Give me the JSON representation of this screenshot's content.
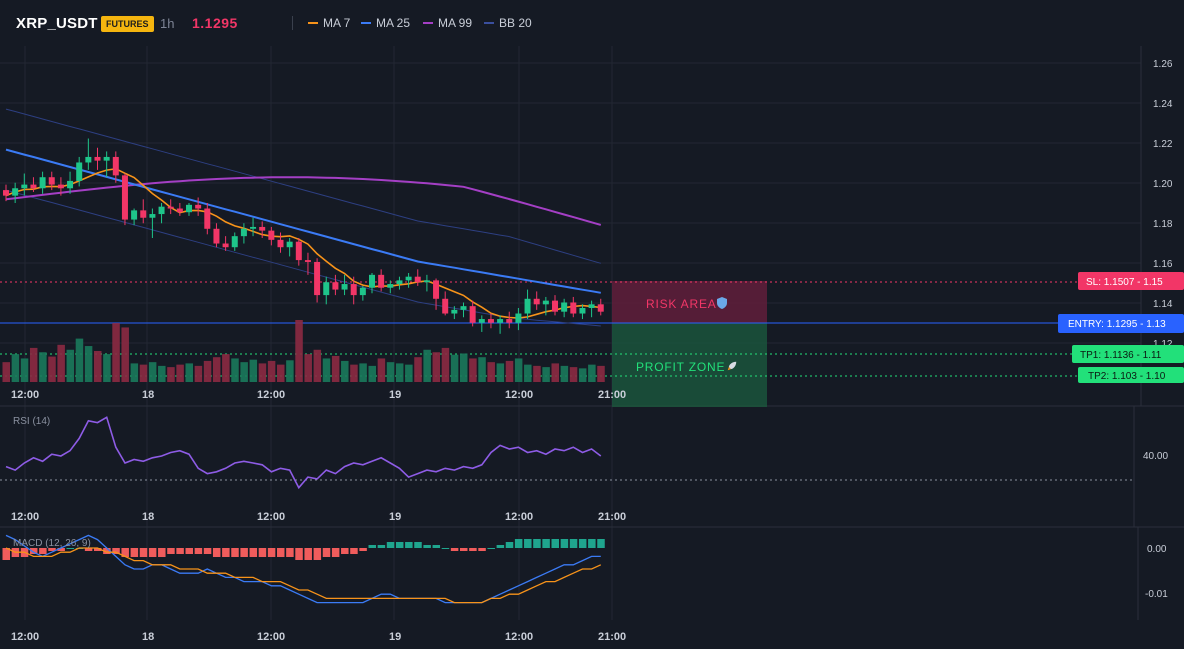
{
  "header": {
    "symbol": "XRP_USDT",
    "badge": "FUTURES",
    "timeframe": "1h",
    "price": "1.1295",
    "legend": [
      {
        "label": "MA 7",
        "color": "#f7931a"
      },
      {
        "label": "MA 25",
        "color": "#3b7bf5"
      },
      {
        "label": "MA 99",
        "color": "#a43fc5"
      },
      {
        "label": "BB 20",
        "color": "#3a4f9e"
      }
    ]
  },
  "colors": {
    "up": "#1ec58a",
    "down": "#f23667",
    "bg": "#151a24",
    "grid": "#222733"
  },
  "main_pane": {
    "y_axis_ticks": [
      "1.26",
      "1.24",
      "1.22",
      "1.20",
      "1.18",
      "1.16",
      "1.14",
      "1.12"
    ],
    "x_axis_ticks": [
      "12:00",
      "18",
      "12:00",
      "19",
      "12:00",
      "21:00"
    ],
    "risk_label": "RISK AREA",
    "profit_label": "PROFIT ZONE",
    "risk_icon": "shield-icon",
    "profit_icon": "rocket-icon",
    "levels": [
      {
        "id": "sl",
        "label": "SL: 1.1507 - 1.15",
        "color": "#f23667",
        "price": 1.1507
      },
      {
        "id": "entry",
        "label": "ENTRY: 1.1295 - 1.13",
        "color": "#2962ff",
        "price": 1.1295
      },
      {
        "id": "tp1",
        "label": "TP1: 1.1136 - 1.11",
        "color": "#22e07a",
        "price": 1.1136
      },
      {
        "id": "tp2",
        "label": "TP2: 1.103 - 1.10",
        "color": "#22e07a",
        "price": 1.103
      }
    ]
  },
  "rsi_pane": {
    "title": "RSI (14)",
    "level_label": "40.00",
    "x_axis_ticks": [
      "12:00",
      "18",
      "12:00",
      "19",
      "12:00",
      "21:00"
    ]
  },
  "macd_pane": {
    "title": "MACD (12, 26, 9)",
    "y_axis_ticks": [
      "0.00",
      "-0.01"
    ],
    "x_axis_ticks": [
      "12:00",
      "18",
      "12:00",
      "19",
      "12:00",
      "21:00"
    ]
  },
  "chart_data": {
    "type": "candlestick",
    "y_range": [
      1.113,
      1.265
    ],
    "candles": [
      [
        1.196,
        1.199,
        1.19,
        1.193
      ],
      [
        1.193,
        1.2,
        1.189,
        1.197
      ],
      [
        1.197,
        1.205,
        1.193,
        1.199
      ],
      [
        1.199,
        1.203,
        1.195,
        1.197
      ],
      [
        1.197,
        1.206,
        1.194,
        1.203
      ],
      [
        1.203,
        1.206,
        1.196,
        1.199
      ],
      [
        1.199,
        1.203,
        1.193,
        1.197
      ],
      [
        1.197,
        1.206,
        1.194,
        1.201
      ],
      [
        1.201,
        1.214,
        1.198,
        1.211
      ],
      [
        1.211,
        1.224,
        1.207,
        1.214
      ],
      [
        1.214,
        1.219,
        1.207,
        1.212
      ],
      [
        1.212,
        1.217,
        1.203,
        1.214
      ],
      [
        1.214,
        1.217,
        1.2,
        1.204
      ],
      [
        1.204,
        1.205,
        1.177,
        1.18
      ],
      [
        1.18,
        1.186,
        1.177,
        1.185
      ],
      [
        1.185,
        1.191,
        1.178,
        1.181
      ],
      [
        1.181,
        1.186,
        1.17,
        1.183
      ],
      [
        1.183,
        1.189,
        1.178,
        1.187
      ],
      [
        1.187,
        1.191,
        1.183,
        1.186
      ],
      [
        1.186,
        1.189,
        1.182,
        1.184
      ],
      [
        1.184,
        1.189,
        1.182,
        1.188
      ],
      [
        1.188,
        1.192,
        1.182,
        1.186
      ],
      [
        1.186,
        1.189,
        1.172,
        1.175
      ],
      [
        1.175,
        1.178,
        1.165,
        1.167
      ],
      [
        1.167,
        1.171,
        1.163,
        1.165
      ],
      [
        1.165,
        1.173,
        1.163,
        1.171
      ],
      [
        1.171,
        1.178,
        1.167,
        1.175
      ],
      [
        1.175,
        1.181,
        1.171,
        1.176
      ],
      [
        1.176,
        1.179,
        1.17,
        1.174
      ],
      [
        1.174,
        1.176,
        1.166,
        1.169
      ],
      [
        1.169,
        1.173,
        1.162,
        1.165
      ],
      [
        1.165,
        1.17,
        1.16,
        1.168
      ],
      [
        1.168,
        1.17,
        1.155,
        1.158
      ],
      [
        1.158,
        1.162,
        1.15,
        1.157
      ],
      [
        1.157,
        1.159,
        1.135,
        1.139
      ],
      [
        1.139,
        1.149,
        1.134,
        1.146
      ],
      [
        1.146,
        1.15,
        1.139,
        1.142
      ],
      [
        1.142,
        1.15,
        1.139,
        1.145
      ],
      [
        1.145,
        1.149,
        1.134,
        1.139
      ],
      [
        1.139,
        1.144,
        1.136,
        1.143
      ],
      [
        1.143,
        1.151,
        1.14,
        1.15
      ],
      [
        1.15,
        1.153,
        1.141,
        1.143
      ],
      [
        1.143,
        1.147,
        1.14,
        1.145
      ],
      [
        1.145,
        1.149,
        1.142,
        1.147
      ],
      [
        1.147,
        1.151,
        1.143,
        1.149
      ],
      [
        1.149,
        1.153,
        1.144,
        1.146
      ],
      [
        1.146,
        1.15,
        1.141,
        1.147
      ],
      [
        1.147,
        1.148,
        1.131,
        1.137
      ],
      [
        1.137,
        1.141,
        1.128,
        1.129
      ],
      [
        1.129,
        1.133,
        1.126,
        1.131
      ],
      [
        1.131,
        1.135,
        1.127,
        1.133
      ],
      [
        1.133,
        1.136,
        1.122,
        1.124
      ],
      [
        1.124,
        1.128,
        1.119,
        1.126
      ],
      [
        1.126,
        1.129,
        1.121,
        1.124
      ],
      [
        1.124,
        1.128,
        1.118,
        1.126
      ],
      [
        1.126,
        1.13,
        1.121,
        1.124
      ],
      [
        1.124,
        1.132,
        1.12,
        1.129
      ],
      [
        1.129,
        1.142,
        1.126,
        1.137
      ],
      [
        1.137,
        1.141,
        1.131,
        1.134
      ],
      [
        1.134,
        1.138,
        1.128,
        1.136
      ],
      [
        1.136,
        1.139,
        1.128,
        1.13
      ],
      [
        1.13,
        1.137,
        1.127,
        1.135
      ],
      [
        1.135,
        1.138,
        1.127,
        1.129
      ],
      [
        1.129,
        1.134,
        1.126,
        1.132
      ],
      [
        1.132,
        1.136,
        1.127,
        1.134
      ],
      [
        1.134,
        1.137,
        1.128,
        1.13
      ]
    ],
    "volume": [
      32,
      45,
      38,
      55,
      48,
      41,
      60,
      52,
      70,
      58,
      50,
      45,
      95,
      88,
      30,
      28,
      32,
      26,
      24,
      28,
      30,
      26,
      34,
      40,
      45,
      38,
      32,
      36,
      30,
      34,
      28,
      35,
      100,
      45,
      52,
      38,
      42,
      34,
      28,
      30,
      26,
      38,
      32,
      30,
      28,
      40,
      52,
      48,
      55,
      44,
      46,
      38,
      40,
      32,
      30,
      34,
      38,
      28,
      26,
      24,
      30,
      26,
      24,
      22,
      28,
      26
    ],
    "rsi": [
      44,
      42,
      46,
      49,
      47,
      51,
      50,
      53,
      60,
      70,
      69,
      72,
      55,
      46,
      48,
      47,
      49,
      50,
      52,
      53,
      51,
      43,
      40,
      41,
      43,
      46,
      47,
      46,
      45,
      41,
      43,
      42,
      32,
      38,
      37,
      42,
      40,
      44,
      46,
      45,
      47,
      49,
      46,
      43,
      38,
      40,
      42,
      41,
      43,
      42,
      44,
      43,
      45,
      52,
      56,
      54,
      55,
      52,
      53,
      51,
      54,
      53,
      55,
      52,
      54,
      50
    ],
    "macd_hist": [
      -4,
      -3,
      -3,
      -2,
      -2,
      -1,
      -1,
      0,
      0,
      -1,
      -1,
      -2,
      -2,
      -3,
      -3,
      -3,
      -3,
      -3,
      -2,
      -2,
      -2,
      -2,
      -2,
      -3,
      -3,
      -3,
      -3,
      -3,
      -3,
      -3,
      -3,
      -3,
      -4,
      -4,
      -4,
      -3,
      -3,
      -2,
      -2,
      -1,
      1,
      1,
      2,
      2,
      2,
      2,
      1,
      1,
      0,
      -1,
      -1,
      -1,
      -1,
      0,
      1,
      2,
      3,
      3,
      3,
      3,
      3,
      3,
      3,
      3,
      3,
      3
    ],
    "macd_line": [
      0.003,
      0.002,
      0.0005,
      -0.001,
      -0.002,
      -0.001,
      0.0,
      0.001,
      0.002,
      0.003,
      0.002,
      0.0,
      -0.002,
      -0.004,
      -0.005,
      -0.005,
      -0.004,
      -0.004,
      -0.005,
      -0.006,
      -0.006,
      -0.006,
      -0.005,
      -0.006,
      -0.007,
      -0.007,
      -0.008,
      -0.008,
      -0.008,
      -0.009,
      -0.009,
      -0.01,
      -0.011,
      -0.012,
      -0.013,
      -0.013,
      -0.013,
      -0.013,
      -0.013,
      -0.013,
      -0.012,
      -0.011,
      -0.011,
      -0.012,
      -0.012,
      -0.012,
      -0.012,
      -0.012,
      -0.013,
      -0.013,
      -0.013,
      -0.013,
      -0.013,
      -0.012,
      -0.011,
      -0.01,
      -0.009,
      -0.008,
      -0.007,
      -0.006,
      -0.005,
      -0.004,
      -0.004,
      -0.003,
      -0.002,
      -0.002
    ],
    "macd_signal": [
      0.0,
      -0.001,
      -0.001,
      -0.002,
      -0.002,
      -0.002,
      -0.001,
      -0.001,
      0.0,
      0.0,
      0.0,
      -0.001,
      -0.001,
      -0.002,
      -0.003,
      -0.003,
      -0.004,
      -0.004,
      -0.004,
      -0.005,
      -0.005,
      -0.005,
      -0.006,
      -0.006,
      -0.006,
      -0.007,
      -0.007,
      -0.007,
      -0.008,
      -0.008,
      -0.008,
      -0.009,
      -0.01,
      -0.01,
      -0.011,
      -0.012,
      -0.012,
      -0.012,
      -0.012,
      -0.012,
      -0.012,
      -0.012,
      -0.012,
      -0.012,
      -0.012,
      -0.012,
      -0.012,
      -0.012,
      -0.012,
      -0.013,
      -0.013,
      -0.013,
      -0.013,
      -0.012,
      -0.012,
      -0.011,
      -0.011,
      -0.01,
      -0.009,
      -0.008,
      -0.008,
      -0.007,
      -0.006,
      -0.005,
      -0.005,
      -0.004
    ]
  }
}
